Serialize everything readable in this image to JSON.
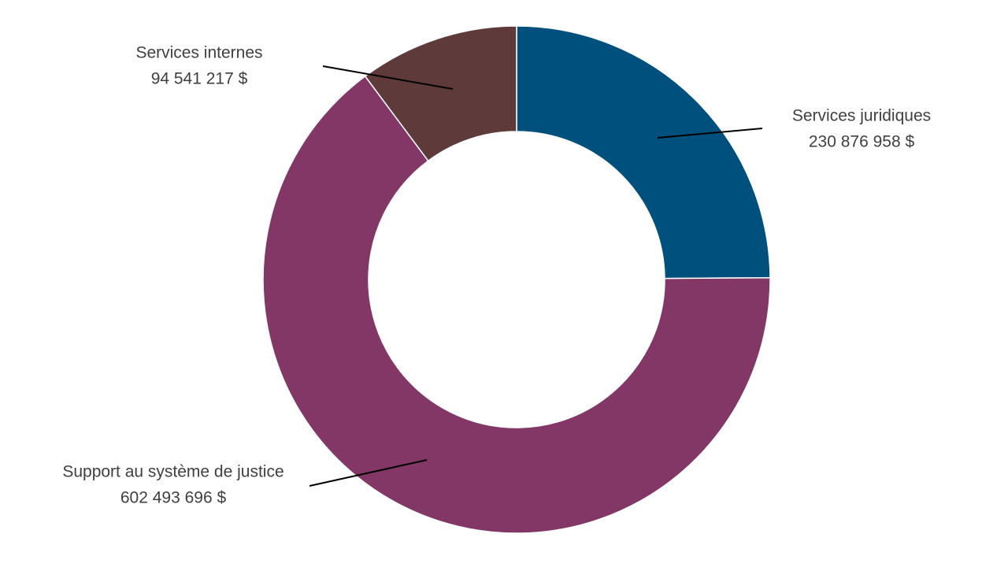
{
  "chart_data": {
    "type": "donut",
    "categories": [
      "Services juridiques",
      "Support au système de justice",
      "Services internes"
    ],
    "values": [
      230876958,
      602493696,
      94541217
    ],
    "value_labels": [
      "230 876 958 $",
      "602 493 696 $",
      "94 541 217 $"
    ],
    "colors": [
      "#00507e",
      "#833767",
      "#5e3a3b"
    ]
  }
}
